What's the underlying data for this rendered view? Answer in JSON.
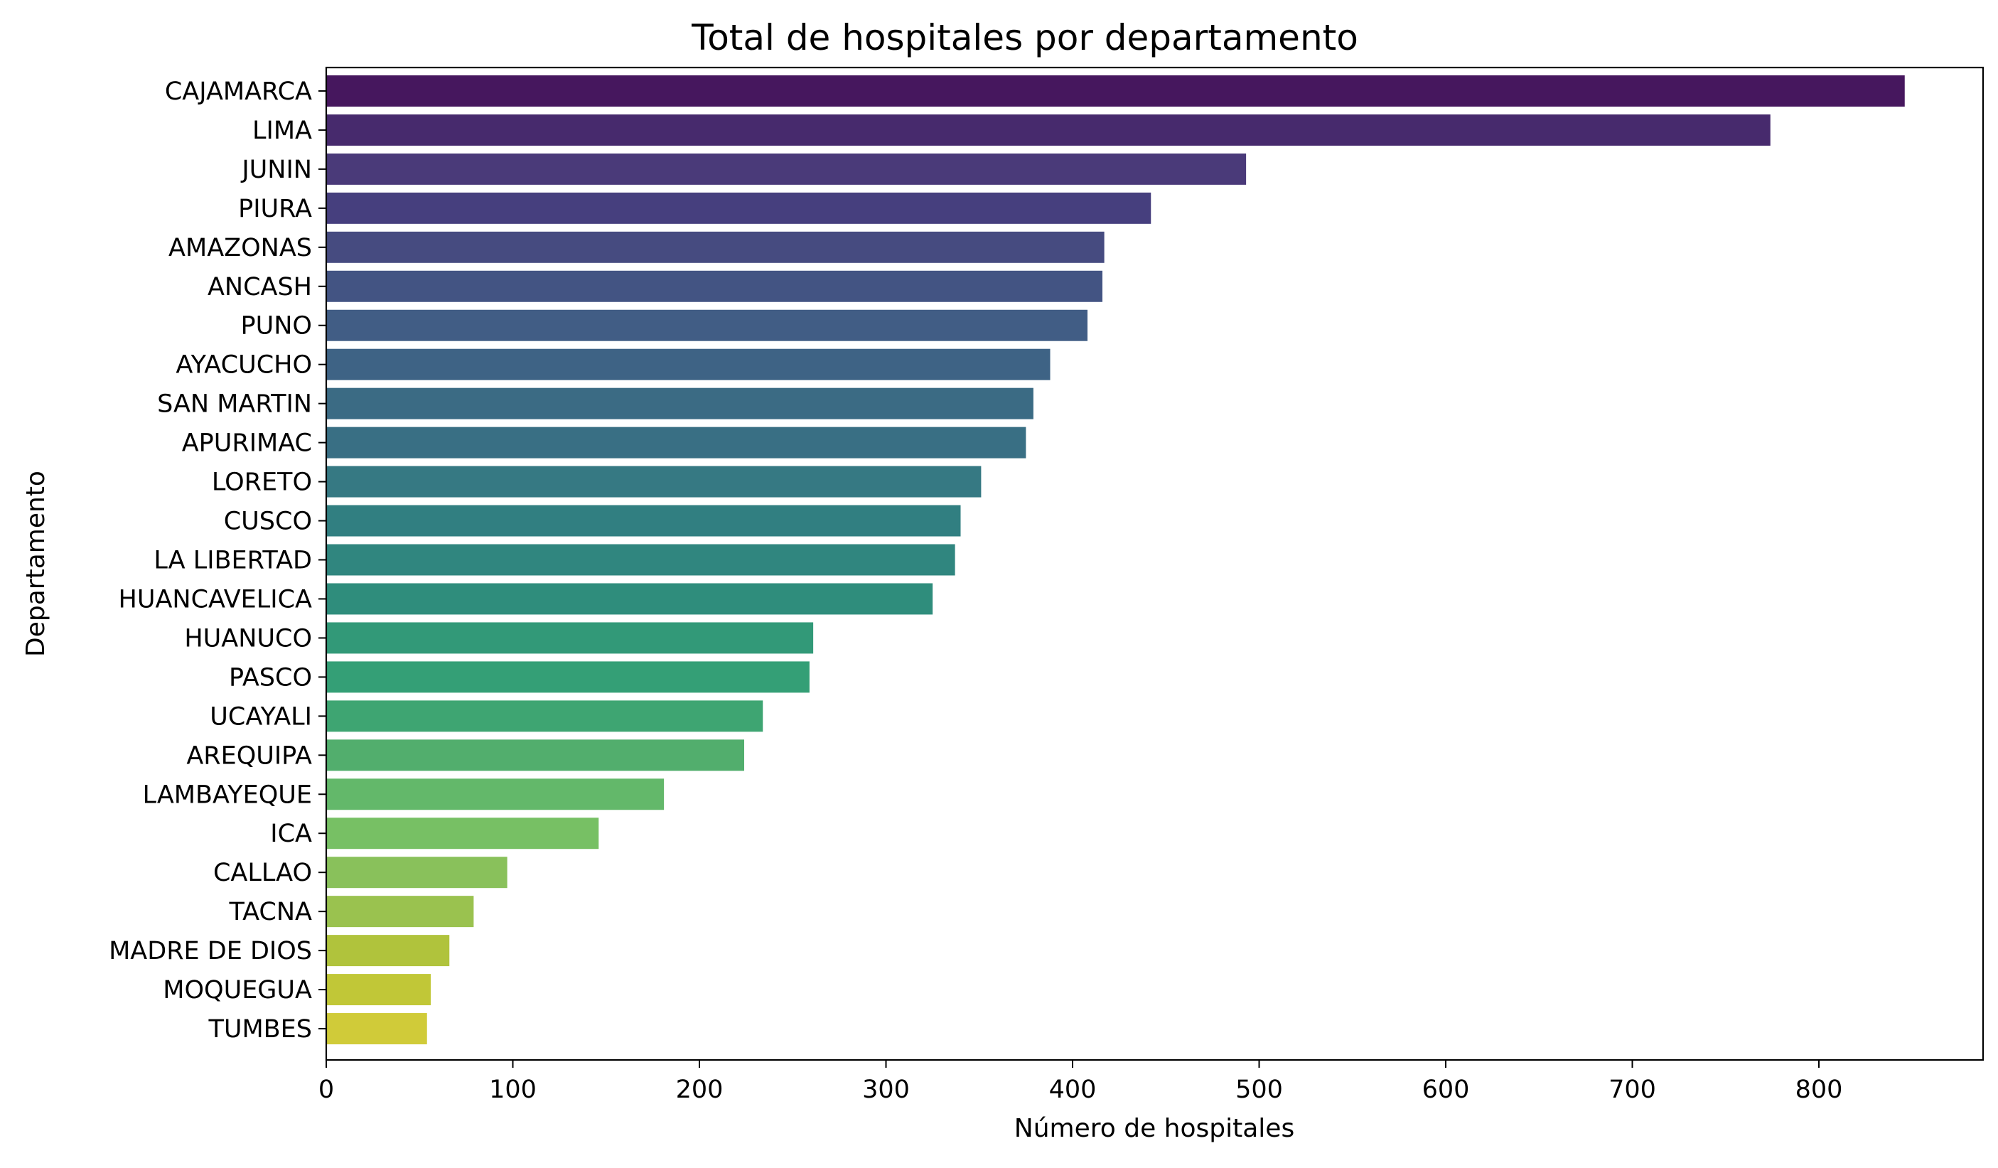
{
  "chart_data": {
    "type": "bar",
    "orientation": "horizontal",
    "title": "Total de hospitales por departamento",
    "xlabel": "Número de hospitales",
    "ylabel": "Departamento",
    "xlim": [
      0,
      888
    ],
    "xticks": [
      0,
      100,
      200,
      300,
      400,
      500,
      600,
      700,
      800
    ],
    "grid": false,
    "legend": "none",
    "colormap": "viridis",
    "categories": [
      "CAJAMARCA",
      "LIMA",
      "JUNIN",
      "PIURA",
      "AMAZONAS",
      "ANCASH",
      "PUNO",
      "AYACUCHO",
      "SAN MARTIN",
      "APURIMAC",
      "LORETO",
      "CUSCO",
      "LA LIBERTAD",
      "HUANCAVELICA",
      "HUANUCO",
      "PASCO",
      "UCAYALI",
      "AREQUIPA",
      "LAMBAYEQUE",
      "ICA",
      "CALLAO",
      "TACNA",
      "MADRE DE DIOS",
      "MOQUEGUA",
      "TUMBES"
    ],
    "values": [
      846,
      774,
      493,
      442,
      417,
      416,
      408,
      388,
      379,
      375,
      351,
      340,
      337,
      325,
      261,
      259,
      234,
      224,
      181,
      146,
      97,
      79,
      66,
      56,
      54
    ],
    "colors": [
      "#46175e",
      "#472a6d",
      "#4a3a79",
      "#463f7e",
      "#464b80",
      "#435483",
      "#415d85",
      "#3e6385",
      "#3b6b84",
      "#396f84",
      "#367983",
      "#317f81",
      "#30867f",
      "#2f8d7c",
      "#329978",
      "#349f76",
      "#3ea572",
      "#52ae6d",
      "#63b86a",
      "#77c064",
      "#89c15b",
      "#9ac24f",
      "#b0c33c",
      "#c1c737",
      "#d0cb39"
    ]
  }
}
